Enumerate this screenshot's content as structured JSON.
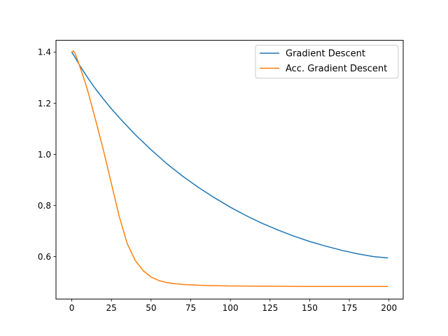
{
  "chart_data": {
    "type": "line",
    "title": "",
    "xlabel": "",
    "ylabel": "",
    "xlim": [
      -9.95,
      208.95
    ],
    "ylim": [
      0.4339,
      1.4461
    ],
    "xticks": [
      0,
      25,
      50,
      75,
      100,
      125,
      150,
      175,
      200
    ],
    "yticks": [
      0.6,
      0.8,
      1.0,
      1.2,
      1.4
    ],
    "xtick_labels": [
      "0",
      "25",
      "50",
      "75",
      "100",
      "125",
      "150",
      "175",
      "200"
    ],
    "ytick_labels": [
      "0.6",
      "0.8",
      "1.0",
      "1.2",
      "1.4"
    ],
    "grid": false,
    "legend_position": "top-right",
    "series": [
      {
        "name": "Gradient Descent",
        "color": "#1f77b4",
        "x": [
          0,
          2,
          5,
          10,
          15,
          20,
          25,
          30,
          40,
          50,
          60,
          70,
          80,
          90,
          100,
          110,
          120,
          130,
          140,
          150,
          160,
          170,
          180,
          190,
          199
        ],
        "y": [
          1.4,
          1.38,
          1.348,
          1.3,
          1.256,
          1.216,
          1.178,
          1.143,
          1.077,
          1.018,
          0.963,
          0.914,
          0.87,
          0.83,
          0.793,
          0.76,
          0.73,
          0.704,
          0.68,
          0.659,
          0.641,
          0.625,
          0.611,
          0.6,
          0.595
        ]
      },
      {
        "name": "Acc. Gradient Descent",
        "color": "#ff7f0e",
        "x": [
          0,
          1,
          2,
          3,
          5,
          8,
          10,
          15,
          20,
          25,
          30,
          35,
          40,
          45,
          50,
          55,
          60,
          65,
          70,
          80,
          90,
          100,
          125,
          150,
          175,
          199
        ],
        "y": [
          1.4,
          1.405,
          1.395,
          1.38,
          1.345,
          1.29,
          1.25,
          1.135,
          1.015,
          0.885,
          0.755,
          0.65,
          0.585,
          0.545,
          0.52,
          0.506,
          0.498,
          0.494,
          0.491,
          0.488,
          0.486,
          0.485,
          0.484,
          0.483,
          0.483,
          0.483
        ]
      }
    ]
  }
}
